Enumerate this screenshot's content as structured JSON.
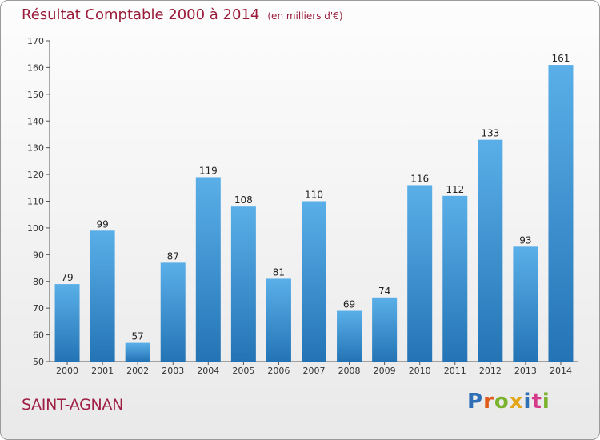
{
  "title": "Résultat Comptable 2000 à 2014",
  "subtitle": "(en milliers d'€)",
  "place_label": "SAINT-AGNAN",
  "logo": {
    "text": "Proxiti",
    "colors": [
      "#2f6fb6",
      "#e05a1a",
      "#7bb32e",
      "#e3a51a",
      "#2f6fb6",
      "#d63a8a",
      "#7bb32e"
    ]
  },
  "colors": {
    "bar_top": "#5aafe8",
    "bar_bottom": "#2474b5",
    "title": "#9a1c3a",
    "place": "#a01f45"
  },
  "chart_data": {
    "type": "bar",
    "categories": [
      "2000",
      "2001",
      "2002",
      "2003",
      "2004",
      "2005",
      "2006",
      "2007",
      "2008",
      "2009",
      "2010",
      "2011",
      "2012",
      "2013",
      "2014"
    ],
    "values": [
      79,
      99,
      57,
      87,
      119,
      108,
      81,
      110,
      69,
      74,
      116,
      112,
      133,
      93,
      161
    ],
    "ylim": [
      50,
      170
    ],
    "yticks": [
      50,
      60,
      70,
      80,
      90,
      100,
      110,
      120,
      130,
      140,
      150,
      160,
      170
    ],
    "grid": false,
    "title": "Résultat Comptable 2000 à 2014",
    "xlabel": "",
    "ylabel": ""
  }
}
